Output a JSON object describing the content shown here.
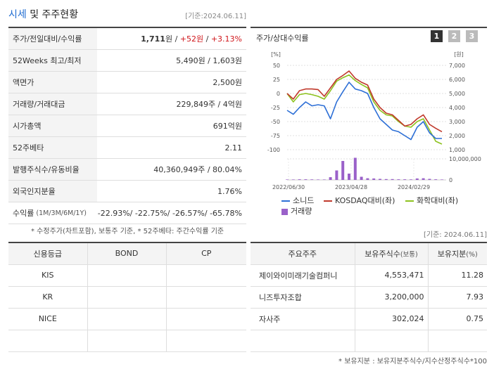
{
  "header": {
    "title_accent": "시세",
    "title_rest": "및 주주현황",
    "date": "[기준:2024.06.11]"
  },
  "price_table": {
    "rows": [
      {
        "label": "주가/전일대비/수익률",
        "price": "1,711",
        "unit": "원",
        "sep": " / ",
        "change": "+52원",
        "pct": "+3.13%"
      },
      {
        "label": "52Weeks 최고/최저",
        "value": "5,490원 / 1,603원"
      },
      {
        "label": "액면가",
        "value": "2,500원"
      },
      {
        "label": "거래량/거래대금",
        "value": "229,849주 / 4억원"
      },
      {
        "label": "시가총액",
        "value": "691억원"
      },
      {
        "label": "52주베타",
        "value": "2.11"
      },
      {
        "label": "발행주식수/유동비율",
        "value": "40,360,949주 / 80.04%"
      },
      {
        "label": "외국인지분율",
        "value": "1.76%"
      }
    ],
    "returns": {
      "label": "수익률",
      "period": "(1M/3M/6M/1Y)",
      "values": "-22.93%/ -22.75%/ -26.57%/ -65.78%"
    },
    "note": "* 수정주가(차트포함), 보통주 기준, * 52주베타: 주간수익률 기준"
  },
  "chart_panel": {
    "title": "주가/상대수익률",
    "pages": [
      "1",
      "2",
      "3"
    ],
    "legend": {
      "s1": "소니드",
      "s2": "KOSDAQ대비(좌)",
      "s3": "화학대비(좌)",
      "s4": "거래량"
    },
    "colors": {
      "s1": "#2d6fd6",
      "s2": "#c0392b",
      "s3": "#8dc21f",
      "volume": "#9a61c9"
    }
  },
  "chart_data": {
    "type": "line",
    "left_axis": {
      "unit": "[%]",
      "ticks": [
        "50",
        "25",
        "0",
        "-25",
        "-50",
        "-75",
        "-100"
      ],
      "range": [
        -100,
        50
      ]
    },
    "right_axis": {
      "unit": "[원]",
      "ticks": [
        "7,000",
        "6,000",
        "5,000",
        "4,000",
        "3,000",
        "2,000",
        "1,000"
      ],
      "range": [
        1000,
        7000
      ]
    },
    "volume_axis": {
      "ticks": [
        "10,000,000",
        "0"
      ],
      "range": [
        0,
        10000000
      ]
    },
    "x_ticks": [
      "2022/06/30",
      "2023/04/28",
      "2024/02/29"
    ],
    "series": [
      {
        "name": "소니드",
        "values": [
          -30,
          -37,
          -25,
          -15,
          -22,
          -20,
          -22,
          -45,
          -15,
          3,
          20,
          8,
          5,
          0,
          -25,
          -45,
          -55,
          -65,
          -68,
          -75,
          -82,
          -60,
          -50,
          -70,
          -80,
          -80
        ]
      },
      {
        "name": "KOSDAQ대비(좌)",
        "values": [
          0,
          -10,
          5,
          8,
          8,
          7,
          -5,
          10,
          25,
          32,
          40,
          27,
          20,
          15,
          -10,
          -25,
          -35,
          -38,
          -48,
          -58,
          -55,
          -45,
          -38,
          -55,
          -62,
          -68
        ]
      },
      {
        "name": "화학대비(좌)",
        "values": [
          0,
          -15,
          -2,
          0,
          -2,
          -5,
          -10,
          5,
          22,
          28,
          33,
          23,
          16,
          10,
          -15,
          -30,
          -38,
          -40,
          -50,
          -58,
          -60,
          -50,
          -45,
          -65,
          -85,
          -90
        ]
      },
      {
        "name": "거래량",
        "values": [
          200000,
          200000,
          300000,
          300000,
          250000,
          200000,
          200000,
          1300000,
          4500000,
          9000000,
          3000000,
          12000000,
          1500000,
          800000,
          700000,
          500000,
          400000,
          400000,
          300000,
          300000,
          250000,
          700000,
          800000,
          500000,
          300000,
          200000
        ]
      }
    ]
  },
  "credit_table": {
    "headers": [
      "신용등급",
      "BOND",
      "CP"
    ],
    "rows": [
      [
        "KIS",
        "",
        ""
      ],
      [
        "KR",
        "",
        ""
      ],
      [
        "NICE",
        "",
        ""
      ],
      [
        "",
        "",
        ""
      ]
    ]
  },
  "holders_date": "[기준: 2024.06.11]",
  "holders_table": {
    "h1": "주요주주",
    "h2": "보유주식수",
    "h2_unit": "(보통)",
    "h3": "보유지분",
    "h3_unit": "(%)",
    "rows": [
      {
        "name": "제이와이미래기술컴퍼니",
        "shares": "4,553,471",
        "pct": "11.28"
      },
      {
        "name": "니즈투자조합",
        "shares": "3,200,000",
        "pct": "7.93"
      },
      {
        "name": "자사주",
        "shares": "302,024",
        "pct": "0.75"
      },
      {
        "name": "",
        "shares": "",
        "pct": ""
      }
    ],
    "note": "* 보유지분 : 보유지분주식수/지수산정주식수*100"
  }
}
